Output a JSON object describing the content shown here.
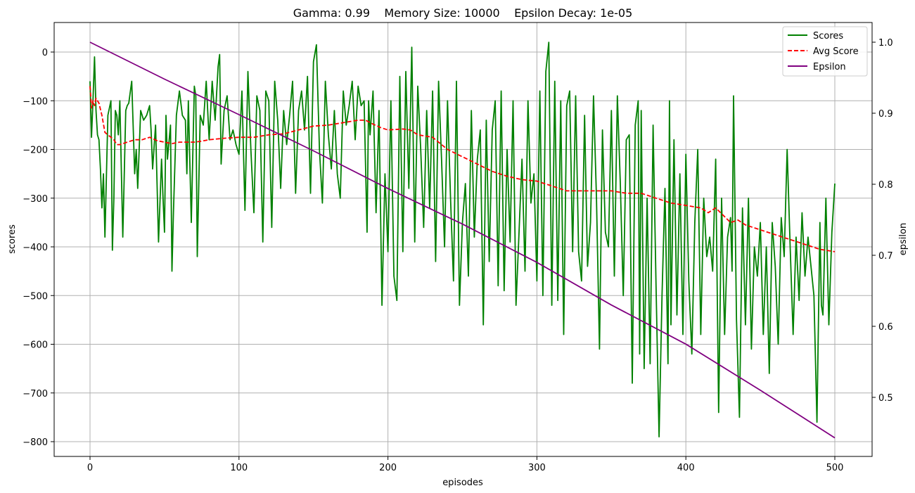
{
  "chart_data": {
    "type": "line",
    "title": "Gamma: 0.99    Memory Size: 10000    Epsilon Decay: 1e-05",
    "xlabel": "episodes",
    "ylabel": "scores",
    "y2label": "epsilon",
    "xlim": [
      -25,
      525
    ],
    "ylim": [
      -830,
      60
    ],
    "y2lim": [
      0.42,
      1.025
    ],
    "xticks": [
      0,
      100,
      200,
      300,
      400,
      500
    ],
    "yticks": [
      0,
      -100,
      -200,
      -300,
      -400,
      -500,
      -600,
      -700,
      -800
    ],
    "y2ticks": [
      1.0,
      0.9,
      0.8,
      0.7,
      0.6,
      0.5
    ],
    "grid": true,
    "legend_position": "top-right",
    "series": [
      {
        "name": "Scores",
        "axis": "left",
        "style": "solid",
        "color": "#008000",
        "x": [
          0,
          1,
          2,
          3,
          4,
          5,
          6,
          7,
          8,
          9,
          10,
          12,
          14,
          15,
          16,
          17,
          18,
          19,
          20,
          22,
          24,
          25,
          26,
          28,
          30,
          31,
          32,
          34,
          36,
          38,
          40,
          41,
          42,
          44,
          46,
          48,
          49,
          50,
          51,
          52,
          54,
          55,
          56,
          58,
          60,
          62,
          64,
          65,
          66,
          68,
          70,
          71,
          72,
          74,
          76,
          78,
          80,
          82,
          84,
          86,
          87,
          88,
          90,
          92,
          94,
          96,
          98,
          100,
          102,
          104,
          106,
          108,
          110,
          112,
          114,
          116,
          118,
          120,
          122,
          124,
          126,
          128,
          130,
          132,
          134,
          136,
          138,
          140,
          142,
          144,
          146,
          148,
          150,
          152,
          154,
          156,
          158,
          160,
          162,
          164,
          166,
          168,
          170,
          172,
          174,
          176,
          178,
          180,
          182,
          184,
          186,
          187,
          188,
          190,
          192,
          194,
          196,
          198,
          200,
          202,
          204,
          206,
          208,
          210,
          212,
          214,
          216,
          218,
          220,
          222,
          224,
          226,
          228,
          230,
          232,
          234,
          236,
          238,
          240,
          242,
          244,
          246,
          248,
          250,
          252,
          254,
          256,
          258,
          260,
          262,
          264,
          266,
          268,
          270,
          272,
          274,
          276,
          278,
          280,
          282,
          284,
          286,
          288,
          290,
          292,
          294,
          296,
          298,
          300,
          302,
          304,
          306,
          308,
          310,
          312,
          314,
          316,
          318,
          320,
          322,
          324,
          326,
          328,
          330,
          332,
          334,
          336,
          338,
          340,
          342,
          344,
          346,
          348,
          350,
          352,
          354,
          356,
          358,
          360,
          362,
          364,
          366,
          368,
          369,
          370,
          372,
          374,
          376,
          378,
          380,
          382,
          384,
          386,
          388,
          389,
          390,
          392,
          394,
          396,
          398,
          400,
          402,
          404,
          406,
          408,
          410,
          412,
          414,
          416,
          418,
          420,
          422,
          424,
          426,
          428,
          430,
          431,
          432,
          434,
          436,
          438,
          440,
          442,
          444,
          446,
          448,
          450,
          452,
          454,
          456,
          458,
          460,
          462,
          464,
          466,
          468,
          470,
          472,
          474,
          476,
          478,
          480,
          482,
          484,
          486,
          488,
          490,
          491,
          492,
          494,
          496,
          498,
          500
        ],
        "values": [
          -60,
          -175,
          -100,
          -10,
          -120,
          -170,
          -180,
          -240,
          -320,
          -250,
          -380,
          -130,
          -100,
          -407,
          -300,
          -120,
          -130,
          -170,
          -100,
          -380,
          -120,
          -110,
          -105,
          -60,
          -250,
          -200,
          -280,
          -120,
          -140,
          -130,
          -110,
          -160,
          -240,
          -150,
          -390,
          -220,
          -300,
          -370,
          -130,
          -220,
          -150,
          -450,
          -330,
          -130,
          -80,
          -130,
          -140,
          -250,
          -100,
          -350,
          -70,
          -90,
          -420,
          -130,
          -150,
          -60,
          -180,
          -60,
          -140,
          -30,
          -5,
          -230,
          -120,
          -90,
          -180,
          -160,
          -190,
          -210,
          -80,
          -325,
          -40,
          -200,
          -330,
          -90,
          -120,
          -390,
          -80,
          -100,
          -360,
          -60,
          -140,
          -280,
          -120,
          -190,
          -130,
          -60,
          -290,
          -120,
          -80,
          -160,
          -50,
          -290,
          -20,
          15,
          -200,
          -310,
          -60,
          -170,
          -240,
          -120,
          -250,
          -300,
          -80,
          -150,
          -110,
          -60,
          -180,
          -70,
          -110,
          -100,
          -370,
          -100,
          -170,
          -80,
          -330,
          -120,
          -520,
          -250,
          -410,
          -100,
          -460,
          -510,
          -50,
          -410,
          -40,
          -280,
          10,
          -390,
          -70,
          -200,
          -360,
          -120,
          -320,
          -80,
          -430,
          -60,
          -220,
          -400,
          -100,
          -300,
          -470,
          -60,
          -520,
          -350,
          -270,
          -460,
          -120,
          -380,
          -220,
          -160,
          -560,
          -140,
          -430,
          -160,
          -100,
          -480,
          -80,
          -490,
          -200,
          -390,
          -100,
          -520,
          -370,
          -220,
          -450,
          -100,
          -310,
          -250,
          -470,
          -80,
          -500,
          -40,
          20,
          -520,
          -60,
          -510,
          -100,
          -580,
          -110,
          -80,
          -410,
          -90,
          -410,
          -470,
          -130,
          -440,
          -350,
          -90,
          -300,
          -610,
          -160,
          -370,
          -400,
          -120,
          -460,
          -90,
          -270,
          -500,
          -180,
          -170,
          -680,
          -150,
          -100,
          -620,
          -120,
          -650,
          -300,
          -640,
          -150,
          -480,
          -790,
          -500,
          -280,
          -640,
          -100,
          -560,
          -180,
          -540,
          -250,
          -580,
          -210,
          -470,
          -620,
          -350,
          -200,
          -580,
          -300,
          -420,
          -380,
          -450,
          -220,
          -740,
          -300,
          -580,
          -380,
          -340,
          -450,
          -90,
          -550,
          -750,
          -320,
          -560,
          -300,
          -610,
          -400,
          -460,
          -350,
          -580,
          -400,
          -660,
          -350,
          -440,
          -600,
          -340,
          -420,
          -200,
          -400,
          -580,
          -380,
          -510,
          -330,
          -460,
          -380,
          -440,
          -500,
          -760,
          -350,
          -520,
          -540,
          -300,
          -560,
          -370,
          -270
        ]
      },
      {
        "name": "Avg Score",
        "axis": "left",
        "style": "dashed",
        "color": "#ff0000",
        "x": [
          0,
          1,
          2,
          3,
          4,
          5,
          6,
          8,
          10,
          12,
          14,
          16,
          18,
          20,
          25,
          30,
          35,
          40,
          45,
          50,
          55,
          60,
          65,
          70,
          75,
          80,
          90,
          100,
          110,
          120,
          130,
          140,
          150,
          160,
          170,
          180,
          185,
          190,
          195,
          200,
          210,
          215,
          220,
          230,
          240,
          250,
          260,
          270,
          280,
          290,
          300,
          310,
          320,
          330,
          340,
          350,
          360,
          370,
          380,
          390,
          400,
          410,
          415,
          420,
          425,
          430,
          435,
          440,
          450,
          460,
          470,
          480,
          490,
          500
        ],
        "values": [
          -70,
          -115,
          -100,
          -110,
          -95,
          -100,
          -105,
          -130,
          -165,
          -170,
          -175,
          -180,
          -190,
          -190,
          -185,
          -180,
          -180,
          -175,
          -182,
          -185,
          -188,
          -185,
          -185,
          -185,
          -183,
          -180,
          -177,
          -175,
          -175,
          -170,
          -168,
          -160,
          -152,
          -150,
          -145,
          -140,
          -140,
          -148,
          -155,
          -160,
          -158,
          -160,
          -170,
          -175,
          -200,
          -215,
          -230,
          -245,
          -255,
          -262,
          -265,
          -275,
          -285,
          -285,
          -285,
          -285,
          -290,
          -290,
          -300,
          -310,
          -315,
          -320,
          -330,
          -320,
          -335,
          -350,
          -345,
          -355,
          -365,
          -375,
          -385,
          -395,
          -405,
          -410
        ]
      },
      {
        "name": "Epsilon",
        "axis": "right",
        "style": "solid",
        "color": "#800080",
        "x": [
          0,
          50,
          100,
          150,
          200,
          250,
          300,
          350,
          400,
          450,
          500
        ],
        "values": [
          1.0,
          0.948,
          0.898,
          0.847,
          0.794,
          0.744,
          0.69,
          0.63,
          0.575,
          0.51,
          0.443
        ]
      }
    ]
  }
}
